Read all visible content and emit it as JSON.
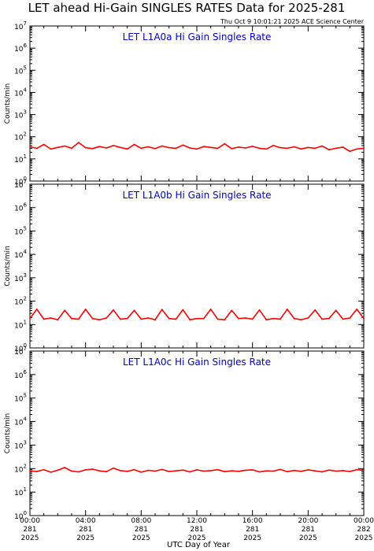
{
  "title": "LET ahead Hi-Gain SINGLES RATES Data for 2025-281",
  "timestamp": "Thu Oct  9 10:01:21 2025 ACE Science Center",
  "xlabel": "UTC Day of Year",
  "ylabel": "Counts/min",
  "colors": {
    "series": "#ff0000",
    "panel_title": "#0000cc",
    "axis": "#000000"
  },
  "x_ticks": [
    {
      "hour": 0,
      "time": "00:00",
      "doy": "281",
      "year": "2025"
    },
    {
      "hour": 4,
      "time": "04:00",
      "doy": "281",
      "year": "2025"
    },
    {
      "hour": 8,
      "time": "08:00",
      "doy": "281",
      "year": "2025"
    },
    {
      "hour": 12,
      "time": "12:00",
      "doy": "281",
      "year": "2025"
    },
    {
      "hour": 16,
      "time": "16:00",
      "doy": "281",
      "year": "2025"
    },
    {
      "hour": 20,
      "time": "20:00",
      "doy": "281",
      "year": "2025"
    },
    {
      "hour": 24,
      "time": "00:00",
      "doy": "282",
      "year": "2025"
    }
  ],
  "chart_data": [
    {
      "type": "line",
      "title": "LET L1A0a Hi Gain Singles Rate",
      "xlim": [
        0,
        24
      ],
      "ylim": [
        1,
        10000000
      ],
      "yscale": "log",
      "ylabel": "Counts/min",
      "y_ticks": [
        1,
        10,
        100,
        1000,
        10000,
        100000,
        1000000,
        10000000
      ],
      "series": [
        {
          "x": [
            0,
            0.5,
            1,
            1.5,
            2,
            2.5,
            3,
            3.5,
            4,
            4.5,
            5,
            5.5,
            6,
            6.5,
            7,
            7.5,
            8,
            8.5,
            9,
            9.5,
            10,
            10.5,
            11,
            11.5,
            12,
            12.5,
            13,
            13.5,
            14,
            14.5,
            15,
            15.5,
            16,
            16.5,
            17,
            17.5,
            18,
            18.5,
            19,
            19.5,
            20,
            20.5,
            21,
            21.5,
            22,
            22.5,
            23,
            23.5,
            24
          ],
          "y": [
            35,
            30,
            45,
            28,
            33,
            38,
            30,
            55,
            32,
            29,
            36,
            31,
            40,
            33,
            28,
            45,
            30,
            35,
            29,
            38,
            32,
            30,
            42,
            31,
            28,
            36,
            33,
            30,
            48,
            29,
            34,
            31,
            37,
            30,
            28,
            40,
            32,
            30,
            35,
            28,
            33,
            30,
            38,
            26,
            30,
            34,
            22,
            28,
            30
          ]
        }
      ]
    },
    {
      "type": "line",
      "title": "LET L1A0b Hi Gain Singles Rate",
      "xlim": [
        0,
        24
      ],
      "ylim": [
        1,
        10000000
      ],
      "yscale": "log",
      "ylabel": "Counts/min",
      "y_ticks": [
        1,
        10,
        100,
        1000,
        10000,
        100000,
        1000000,
        10000000
      ],
      "series": [
        {
          "x": [
            0,
            0.5,
            1,
            1.5,
            2,
            2.5,
            3,
            3.5,
            4,
            4.5,
            5,
            5.5,
            6,
            6.5,
            7,
            7.5,
            8,
            8.5,
            9,
            9.5,
            10,
            10.5,
            11,
            11.5,
            12,
            12.5,
            13,
            13.5,
            14,
            14.5,
            15,
            15.5,
            16,
            16.5,
            17,
            17.5,
            18,
            18.5,
            19,
            19.5,
            20,
            20.5,
            21,
            21.5,
            22,
            22.5,
            23,
            23.5,
            24
          ],
          "y": [
            18,
            45,
            17,
            19,
            16,
            40,
            18,
            17,
            45,
            18,
            16,
            19,
            42,
            17,
            18,
            40,
            17,
            19,
            16,
            44,
            18,
            17,
            43,
            16,
            18,
            18,
            45,
            17,
            16,
            40,
            18,
            19,
            17,
            42,
            16,
            18,
            17,
            45,
            18,
            16,
            19,
            42,
            17,
            18,
            40,
            17,
            19,
            45,
            18
          ]
        }
      ]
    },
    {
      "type": "line",
      "title": "LET L1A0c Hi Gain Singles Rate",
      "xlim": [
        0,
        24
      ],
      "ylim": [
        1,
        10000000
      ],
      "yscale": "log",
      "ylabel": "Counts/min",
      "y_ticks": [
        1,
        10,
        100,
        1000,
        10000,
        100000,
        1000000,
        10000000
      ],
      "series": [
        {
          "x": [
            0,
            0.5,
            1,
            1.5,
            2,
            2.5,
            3,
            3.5,
            4,
            4.5,
            5,
            5.5,
            6,
            6.5,
            7,
            7.5,
            8,
            8.5,
            9,
            9.5,
            10,
            10.5,
            11,
            11.5,
            12,
            12.5,
            13,
            13.5,
            14,
            14.5,
            15,
            15.5,
            16,
            16.5,
            17,
            17.5,
            18,
            18.5,
            19,
            19.5,
            20,
            20.5,
            21,
            21.5,
            22,
            22.5,
            23,
            23.5,
            24
          ],
          "y": [
            80,
            75,
            90,
            70,
            85,
            110,
            78,
            72,
            88,
            95,
            80,
            74,
            105,
            82,
            76,
            90,
            70,
            84,
            78,
            92,
            75,
            80,
            86,
            72,
            88,
            78,
            82,
            90,
            74,
            80,
            76,
            85,
            88,
            72,
            80,
            78,
            92,
            74,
            83,
            76,
            88,
            80,
            72,
            86,
            78,
            82,
            75,
            90,
            84
          ]
        }
      ]
    }
  ]
}
